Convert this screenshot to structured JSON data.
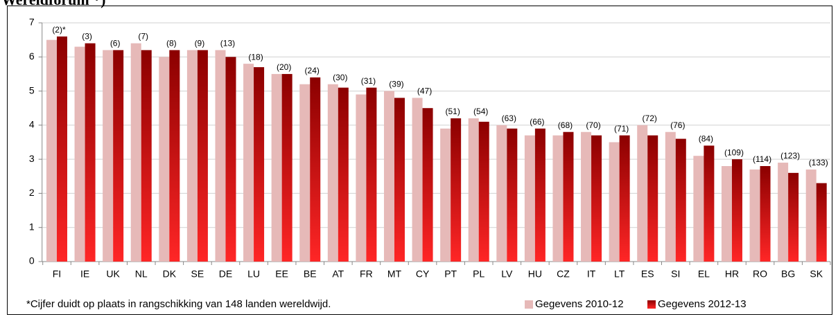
{
  "chart_data": {
    "type": "bar",
    "title": "Wereldforum *)",
    "categories": [
      "FI",
      "IE",
      "UK",
      "NL",
      "DK",
      "SE",
      "DE",
      "LU",
      "EE",
      "BE",
      "AT",
      "FR",
      "MT",
      "CY",
      "PT",
      "PL",
      "LV",
      "HU",
      "CZ",
      "IT",
      "LT",
      "ES",
      "SI",
      "EL",
      "HR",
      "RO",
      "BG",
      "SK"
    ],
    "series": [
      {
        "name": "Gegevens 2010-12",
        "color": "#e6b9b8",
        "values": [
          6.5,
          6.3,
          6.2,
          6.4,
          6.0,
          6.2,
          6.2,
          5.8,
          5.5,
          5.2,
          5.2,
          4.9,
          5.0,
          4.8,
          3.9,
          4.2,
          4.0,
          3.7,
          3.7,
          3.8,
          3.5,
          4.0,
          3.8,
          3.1,
          2.8,
          2.7,
          2.9,
          2.7
        ]
      },
      {
        "name": "Gegevens 2012-13",
        "color": "#8b0000",
        "values": [
          6.6,
          6.4,
          6.2,
          6.2,
          6.2,
          6.2,
          6.0,
          5.7,
          5.5,
          5.4,
          5.1,
          5.1,
          4.8,
          4.5,
          4.2,
          4.1,
          3.9,
          3.9,
          3.8,
          3.7,
          3.7,
          3.7,
          3.6,
          3.4,
          3.0,
          2.8,
          2.6,
          2.3
        ]
      }
    ],
    "rank_labels": [
      "(2)*",
      "(3)",
      "(6)",
      "(7)",
      "(8)",
      "(9)",
      "(13)",
      "(18)",
      "(20)",
      "(24)",
      "(30)",
      "(31)",
      "(39)",
      "(47)",
      "(51)",
      "(54)",
      "(63)",
      "(66)",
      "(68)",
      "(70)",
      "(71)",
      "(72)",
      "(76)",
      "(84)",
      "(109)",
      "(114)",
      "(123)",
      "(133)"
    ],
    "footnote": "*Cijfer duidt op plaats in rangschikking van 148 landen wereldwijd.",
    "ylim": [
      0,
      7
    ],
    "yticks": [
      0,
      1,
      2,
      3,
      4,
      5,
      6,
      7
    ],
    "grid": true,
    "legend": "bottom-right"
  }
}
